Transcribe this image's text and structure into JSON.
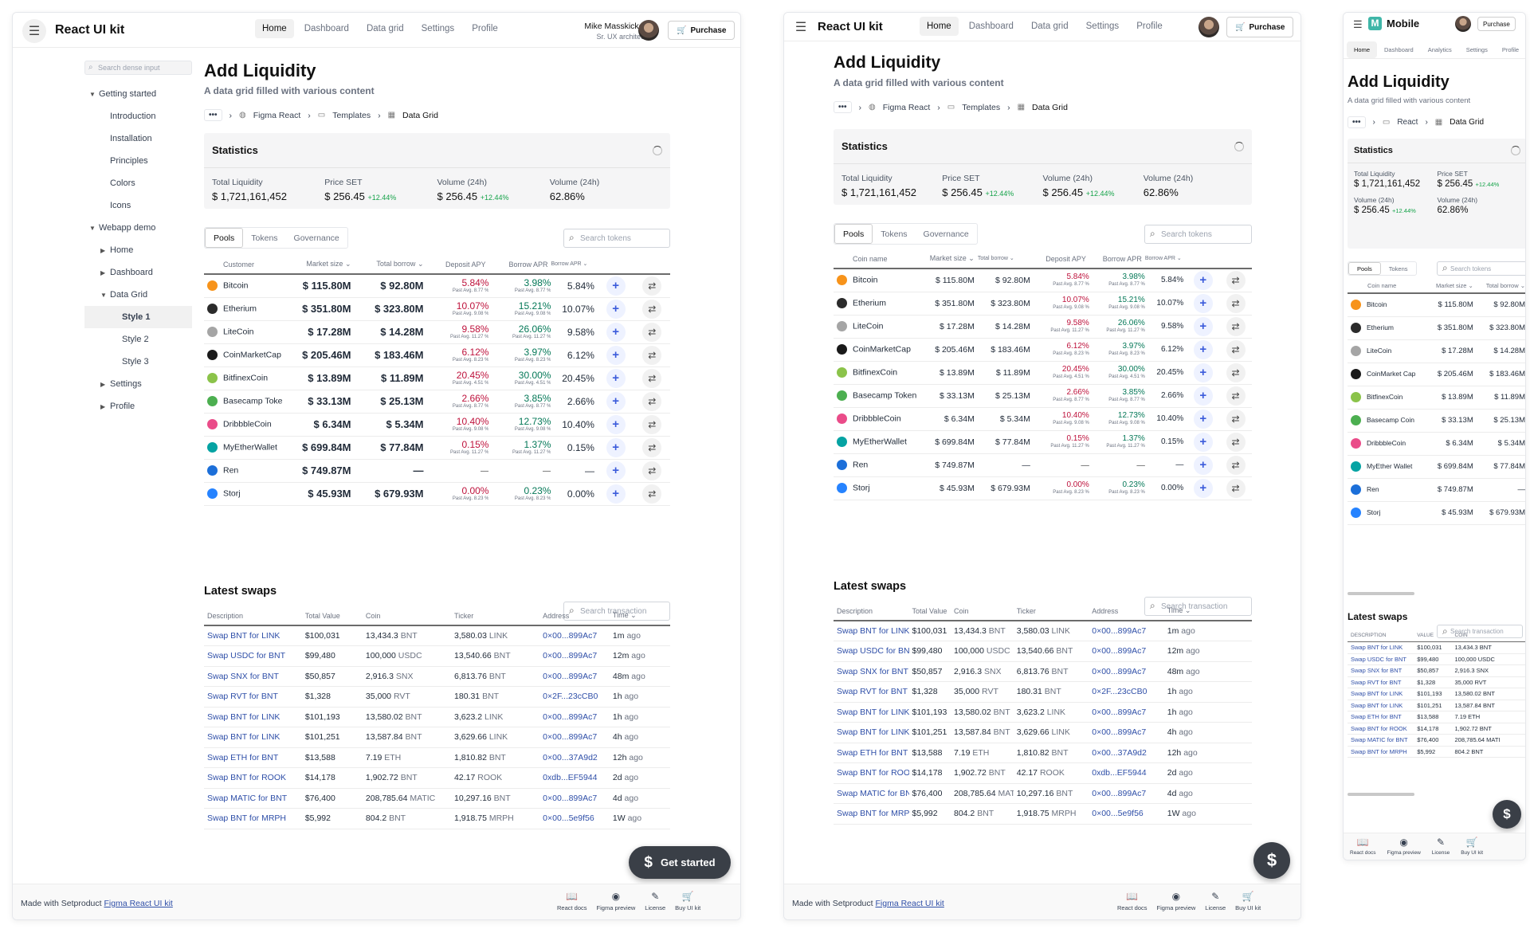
{
  "app": {
    "brand": "React UI kit",
    "mobile_brand": "Mobile",
    "mobile_logo": "M",
    "nav": [
      "Home",
      "Dashboard",
      "Data grid",
      "Settings",
      "Profile"
    ],
    "mobile_nav": [
      "Home",
      "Dashboard",
      "Analytics",
      "Settings",
      "Profile"
    ],
    "purchase": "Purchase",
    "user_name": "Mike Masskicker",
    "user_role": "Sr. UX architect"
  },
  "sidebar": {
    "search_placeholder": "Search dense input",
    "items": [
      {
        "label": "Getting started",
        "level": 0,
        "caret": "down"
      },
      {
        "label": "Introduction",
        "level": 1
      },
      {
        "label": "Installation",
        "level": 1
      },
      {
        "label": "Principles",
        "level": 1
      },
      {
        "label": "Colors",
        "level": 1
      },
      {
        "label": "Icons",
        "level": 1
      },
      {
        "label": "Webapp demo",
        "level": 0,
        "caret": "down"
      },
      {
        "label": "Home",
        "level": 1,
        "caret": "right"
      },
      {
        "label": "Dashboard",
        "level": 1,
        "caret": "right"
      },
      {
        "label": "Data Grid",
        "level": 1,
        "caret": "down"
      },
      {
        "label": "Style 1",
        "level": 2,
        "selected": true
      },
      {
        "label": "Style 2",
        "level": 2
      },
      {
        "label": "Style 3",
        "level": 2
      },
      {
        "label": "Settings",
        "level": 1,
        "caret": "right"
      },
      {
        "label": "Profile",
        "level": 1,
        "caret": "right"
      }
    ]
  },
  "page": {
    "title": "Add Liquidity",
    "subtitle": "A data grid filled with various content",
    "breadcrumb": [
      "Figma React",
      "Templates",
      "Data Grid"
    ],
    "mobile_breadcrumb": [
      "React",
      "Data Grid"
    ],
    "dots": "•••"
  },
  "stats": {
    "title": "Statistics",
    "items": [
      {
        "label": "Total Liquidity",
        "value": "$ 1,721,161,452",
        "change": ""
      },
      {
        "label": "Price SET",
        "value": "$ 256.45",
        "change": "+12.44%"
      },
      {
        "label": "Volume (24h)",
        "value": "$ 256.45",
        "change": "+12.44%"
      },
      {
        "label": "Volume (24h)",
        "value": "62.86%",
        "change": ""
      }
    ]
  },
  "pools": {
    "tabs": [
      "Pools",
      "Tokens",
      "Governance"
    ],
    "search_placeholder": "Search tokens",
    "columns_desktop": [
      "Customer",
      "Market size",
      "Total borrow",
      "Deposit APY",
      "Borrow APR",
      "Borrow APR"
    ],
    "columns_tablet": [
      "Coin name",
      "Market size",
      "Total borrow",
      "Deposit APY",
      "Borrow APR",
      "Borrow APR"
    ],
    "columns_mobile": [
      "Coin name",
      "Market size",
      "Total borrow"
    ],
    "past_prefix": "Past Avg.",
    "rows": [
      {
        "coin": "Bitcoin",
        "mobile_name": "Bitcoin",
        "color": "#f7931a",
        "market": "$ 115.80M",
        "borrow": "$ 92.80M",
        "dep": "5.84%",
        "dep_dir": "neg",
        "dep_past": "8.77 %",
        "bor": "3.98%",
        "bor_dir": "pos",
        "bor_past": "8.77 %",
        "apr": "5.84%"
      },
      {
        "coin": "Etherium",
        "mobile_name": "Etherium",
        "color": "#2b2b2b",
        "market": "$ 351.80M",
        "borrow": "$ 323.80M",
        "dep": "10.07%",
        "dep_dir": "neg",
        "dep_past": "9.08 %",
        "bor": "15.21%",
        "bor_dir": "pos",
        "bor_past": "9.08 %",
        "apr": "10.07%"
      },
      {
        "coin": "LiteCoin",
        "mobile_name": "LiteCoin",
        "color": "#a5a5a5",
        "market": "$ 17.28M",
        "borrow": "$ 14.28M",
        "dep": "9.58%",
        "dep_dir": "neg",
        "dep_past": "11.27 %",
        "bor": "26.06%",
        "bor_dir": "pos",
        "bor_past": "11.27 %",
        "apr": "9.58%"
      },
      {
        "coin": "CoinMarketCap",
        "mobile_name": "CoinMarket Cap",
        "color": "#1a1a1a",
        "market": "$ 205.46M",
        "borrow": "$ 183.46M",
        "dep": "6.12%",
        "dep_dir": "neg",
        "dep_past": "8.23 %",
        "bor": "3.97%",
        "bor_dir": "pos",
        "bor_past": "8.23 %",
        "apr": "6.12%"
      },
      {
        "coin": "BitfinexCoin",
        "mobile_name": "BitfinexCoin",
        "color": "#8bc34a",
        "market": "$ 13.89M",
        "borrow": "$ 11.89M",
        "dep": "20.45%",
        "dep_dir": "neg",
        "dep_past": "4.51 %",
        "bor": "30.00%",
        "bor_dir": "pos",
        "bor_past": "4.51 %",
        "apr": "20.45%"
      },
      {
        "coin": "Basecamp Toke",
        "tablet_name": "Basecamp Token",
        "mobile_name": "Basecamp Coin",
        "color": "#4caf50",
        "market": "$ 33.13M",
        "borrow": "$ 25.13M",
        "dep": "2.66%",
        "dep_dir": "neg",
        "dep_past": "8.77 %",
        "bor": "3.85%",
        "bor_dir": "pos",
        "bor_past": "8.77 %",
        "apr": "2.66%"
      },
      {
        "coin": "DribbbleCoin",
        "mobile_name": "DribbbleCoin",
        "color": "#ea4c89",
        "market": "$ 6.34M",
        "borrow": "$ 5.34M",
        "dep": "10.40%",
        "dep_dir": "neg",
        "dep_past": "9.08 %",
        "bor": "12.73%",
        "bor_dir": "pos",
        "bor_past": "9.08 %",
        "apr": "10.40%"
      },
      {
        "coin": "MyEtherWallet",
        "mobile_name": "MyEther Wallet",
        "color": "#05a3a3",
        "market": "$ 699.84M",
        "borrow": "$ 77.84M",
        "dep": "0.15%",
        "dep_dir": "neg",
        "dep_past": "11.27 %",
        "bor": "1.37%",
        "bor_dir": "pos",
        "bor_past": "11.27 %",
        "apr": "0.15%"
      },
      {
        "coin": "Ren",
        "mobile_name": "Ren",
        "color": "#1c6fd9",
        "market": "$ 749.87M",
        "borrow": "—",
        "dep": "—",
        "dep_dir": "none",
        "dep_past": "",
        "bor": "—",
        "bor_dir": "none",
        "bor_past": "",
        "apr": "—"
      },
      {
        "coin": "Storj",
        "mobile_name": "Storj",
        "color": "#2683ff",
        "market": "$ 45.93M",
        "borrow": "$ 679.93M",
        "dep": "0.00%",
        "dep_dir": "neg",
        "dep_past": "8.23 %",
        "bor": "0.23%",
        "bor_dir": "pos",
        "bor_past": "8.23 %",
        "apr": "0.00%"
      }
    ]
  },
  "swaps": {
    "title": "Latest swaps",
    "search_placeholder": "Search transaction",
    "columns": [
      "Description",
      "Total Value",
      "Coin",
      "Ticker",
      "Address",
      "Time"
    ],
    "columns_mobile": [
      "DESCRIPTION",
      "VALUE",
      "COIN"
    ],
    "rows": [
      {
        "desc": "Swap BNT for LINK",
        "value": "$100,031",
        "coin_amt": "13,434.3",
        "coin_sym": "BNT",
        "ticker_amt": "3,580.03",
        "ticker_sym": "LINK",
        "addr": "0×00...899Ac7",
        "time_num": "1m",
        "mobile_value": "$100,031",
        "mobile_coin": "13,434.3 BNT"
      },
      {
        "desc": "Swap USDC for BNT",
        "value": "$99,480",
        "coin_amt": "100,000",
        "coin_sym": "USDC",
        "ticker_amt": "13,540.66",
        "ticker_sym": "BNT",
        "addr": "0×00...899Ac7",
        "time_num": "12m",
        "mobile_value": "$99,480",
        "mobile_coin": "100,000 USDC"
      },
      {
        "desc": "Swap SNX for BNT",
        "value": "$50,857",
        "coin_amt": "2,916.3",
        "coin_sym": "SNX",
        "ticker_amt": "6,813.76",
        "ticker_sym": "BNT",
        "addr": "0×00...899Ac7",
        "time_num": "48m",
        "mobile_value": "$50,857",
        "mobile_coin": "2,916.3 SNX"
      },
      {
        "desc": "Swap RVT for BNT",
        "value": "$1,328",
        "coin_amt": "35,000",
        "coin_sym": "RVT",
        "ticker_amt": "180.31",
        "ticker_sym": "BNT",
        "addr": "0×2F...23cCB0",
        "time_num": "1h",
        "mobile_value": "$1,328",
        "mobile_coin": "35,000 RVT"
      },
      {
        "desc": "Swap BNT for LINK",
        "value": "$101,193",
        "coin_amt": "13,580.02",
        "coin_sym": "BNT",
        "ticker_amt": "3,623.2",
        "ticker_sym": "LINK",
        "addr": "0×00...899Ac7",
        "time_num": "1h",
        "mobile_value": "$101,193",
        "mobile_coin": "13,580.02 BNT"
      },
      {
        "desc": "Swap BNT for LINK",
        "value": "$101,251",
        "coin_amt": "13,587.84",
        "coin_sym": "BNT",
        "ticker_amt": "3,629.66",
        "ticker_sym": "LINK",
        "addr": "0×00...899Ac7",
        "time_num": "4h",
        "mobile_value": "$101,251",
        "mobile_coin": "13,587.84 BNT"
      },
      {
        "desc": "Swap ETH for BNT",
        "value": "$13,588",
        "coin_amt": "7.19",
        "coin_sym": "ETH",
        "ticker_amt": "1,810.82",
        "ticker_sym": "BNT",
        "addr": "0×00...37A9d2",
        "time_num": "12h",
        "mobile_value": "$13,588",
        "mobile_coin": "7.19 ETH"
      },
      {
        "desc": "Swap BNT for ROOK",
        "value": "$14,178",
        "coin_amt": "1,902.72",
        "coin_sym": "BNT",
        "ticker_amt": "42.17",
        "ticker_sym": "ROOK",
        "addr": "0xdb...EF5944",
        "time_num": "2d",
        "mobile_value": "$14,178",
        "mobile_coin": "1,902.72 BNT"
      },
      {
        "desc": "Swap MATIC for BNT",
        "value": "$76,400",
        "coin_amt": "208,785.64",
        "coin_sym": "MATIC",
        "ticker_amt": "10,297.16",
        "ticker_sym": "BNT",
        "addr": "0×00...899Ac7",
        "time_num": "4d",
        "mobile_value": "$76,400",
        "mobile_coin": "208,785.64 MATI"
      },
      {
        "desc": "Swap BNT for MRPH",
        "value": "$5,992",
        "coin_amt": "804.2",
        "coin_sym": "BNT",
        "ticker_amt": "1,918.75",
        "ticker_sym": "MRPH",
        "addr": "0×00...5e9f56",
        "time_num": "1W",
        "mobile_value": "$5,992",
        "mobile_coin": "804.2 BNT"
      }
    ],
    "ago": "ago"
  },
  "footer": {
    "made": "Made with Setproduct",
    "link": "Figma React UI kit",
    "items": [
      "React docs",
      "Figma preview",
      "License",
      "Buy UI kit"
    ]
  },
  "fab": {
    "label": "Get started",
    "icon": "dollar-icon",
    "symbol": "$"
  },
  "colors": {
    "negative": "#be123c",
    "positive": "#047857",
    "link": "#2f4fa8",
    "up": "#16a34a"
  }
}
